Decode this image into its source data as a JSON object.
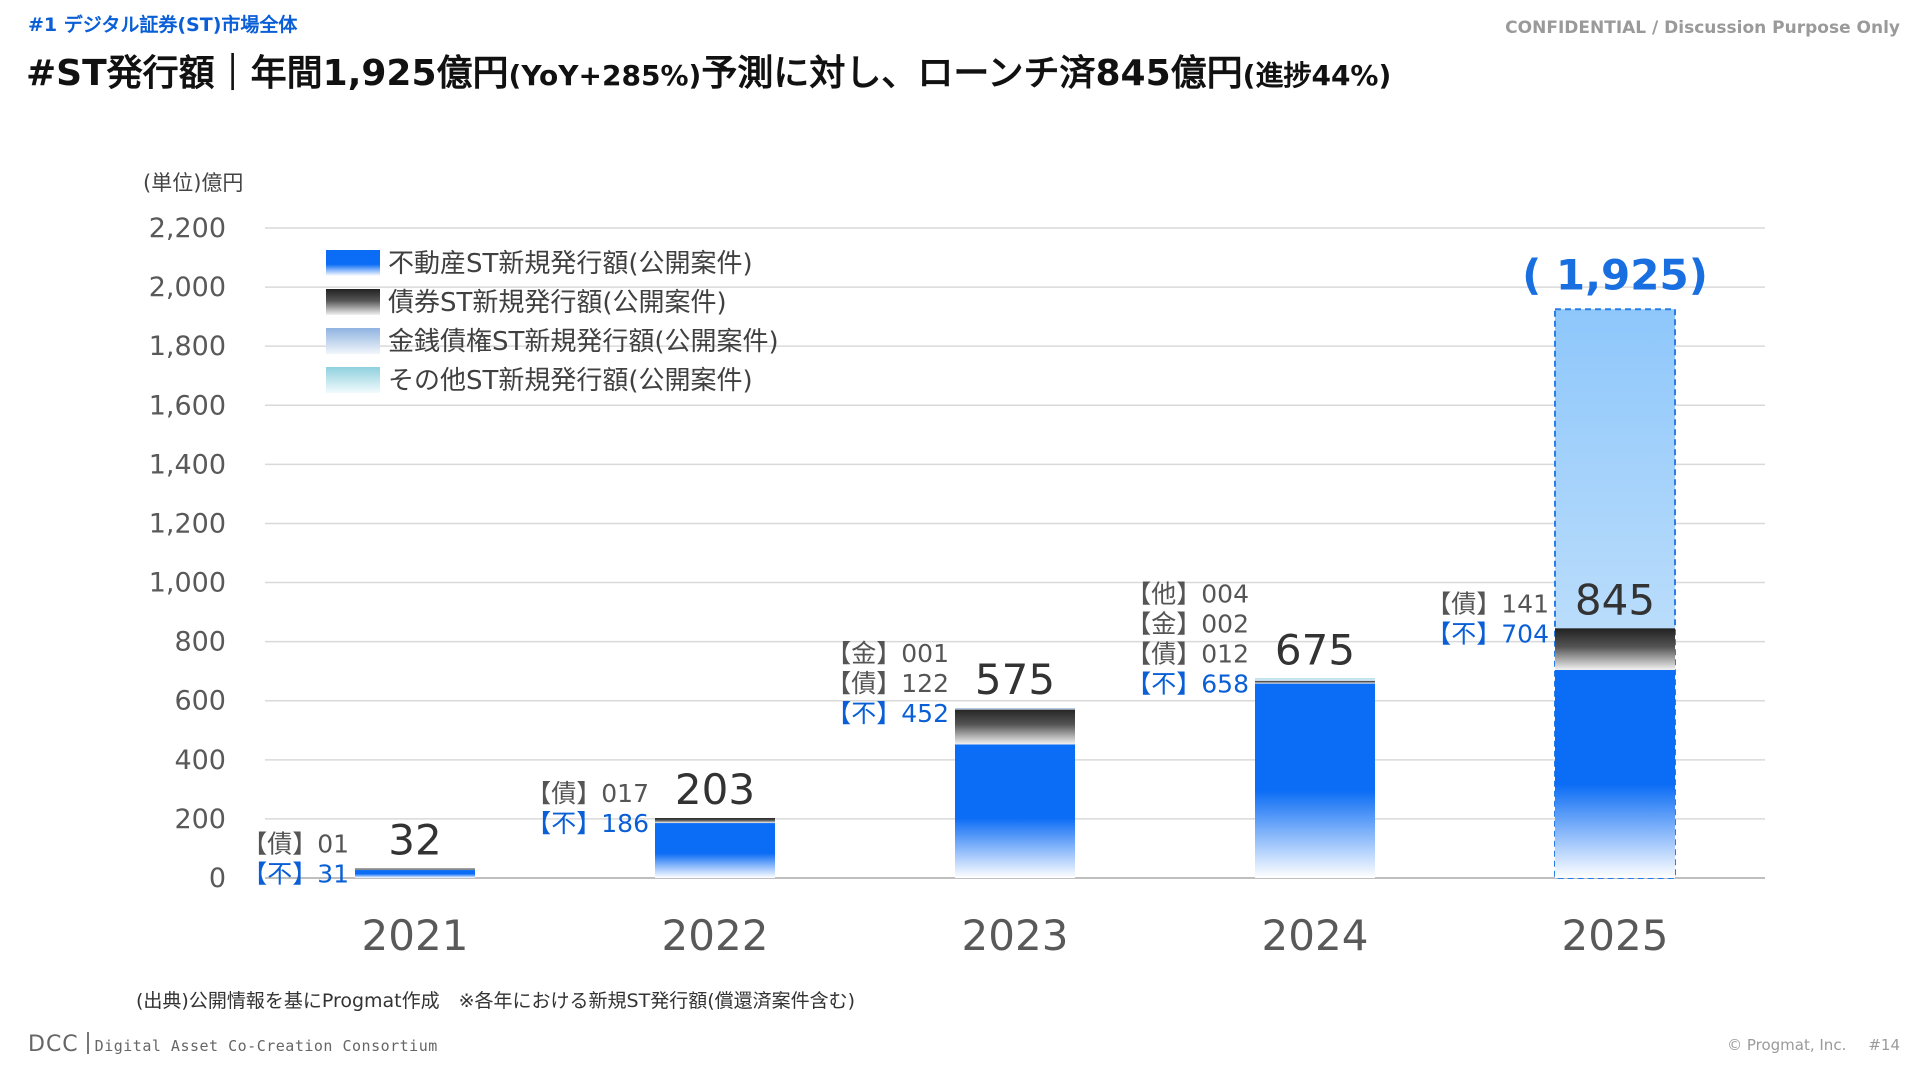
{
  "header": {
    "section_tag": "#1 デジタル証券(ST)市場全体",
    "confidential": "CONFIDENTIAL / Discussion Purpose Only",
    "title_part1": "#ST発行額｜年間1,925億円",
    "title_part2": "(YoY+285%)",
    "title_part3": "予測に対し、ローンチ済845億円",
    "title_part4": "(進捗44%)"
  },
  "chart_data": {
    "type": "bar",
    "stacked": true,
    "unit_label": "(単位)億円",
    "categories": [
      "2021",
      "2022",
      "2023",
      "2024",
      "2025"
    ],
    "ylim": [
      0,
      2200
    ],
    "yticks": [
      "0",
      "200",
      "400",
      "600",
      "800",
      "1,000",
      "1,200",
      "1,400",
      "1,600",
      "1,800",
      "2,000",
      "2,200"
    ],
    "grid": true,
    "legend_position": "top-left",
    "series": [
      {
        "name": "不動産ST新規発行額(公開案件)",
        "color": "#0b6cf5",
        "values": [
          31,
          186,
          452,
          658,
          704
        ]
      },
      {
        "name": "債券ST新規発行額(公開案件)",
        "color": "#222222",
        "values": [
          1,
          17,
          122,
          12,
          141
        ]
      },
      {
        "name": "金銭債権ST新規発行額(公開案件)",
        "color": "#8fb3e0",
        "values": [
          0,
          0,
          1,
          2,
          0
        ]
      },
      {
        "name": "その他ST新規発行額(公開案件)",
        "color": "#8fd0de",
        "values": [
          0,
          0,
          0,
          4,
          0
        ]
      }
    ],
    "totals": [
      "32",
      "203",
      "575",
      "675",
      "845"
    ],
    "forecast": {
      "category": "2025",
      "value": 1925,
      "label": "( 1,925)"
    },
    "segment_labels": [
      [
        {
          "text": "【債】01",
          "color": "#555555"
        },
        {
          "text": "【不】31",
          "color": "#0a5fd6"
        }
      ],
      [
        {
          "text": "【債】017",
          "color": "#555555"
        },
        {
          "text": "【不】186",
          "color": "#0a5fd6"
        }
      ],
      [
        {
          "text": "【金】001",
          "color": "#555555"
        },
        {
          "text": "【債】122",
          "color": "#555555"
        },
        {
          "text": "【不】452",
          "color": "#0a5fd6"
        }
      ],
      [
        {
          "text": "【他】004",
          "color": "#555555"
        },
        {
          "text": "【金】002",
          "color": "#555555"
        },
        {
          "text": "【債】012",
          "color": "#555555"
        },
        {
          "text": "【不】658",
          "color": "#0a5fd6"
        }
      ],
      [
        {
          "text": "【債】141",
          "color": "#555555"
        },
        {
          "text": "【不】704",
          "color": "#0a5fd6"
        }
      ]
    ]
  },
  "footer": {
    "source_note": "(出典)公開情報を基にProgmat作成　※各年における新規ST発行額(償還済案件含む)",
    "logo": "DCC",
    "tagline": "Digital Asset Co-Creation Consortium",
    "copyright": "© Progmat, Inc.",
    "page": "#14"
  }
}
